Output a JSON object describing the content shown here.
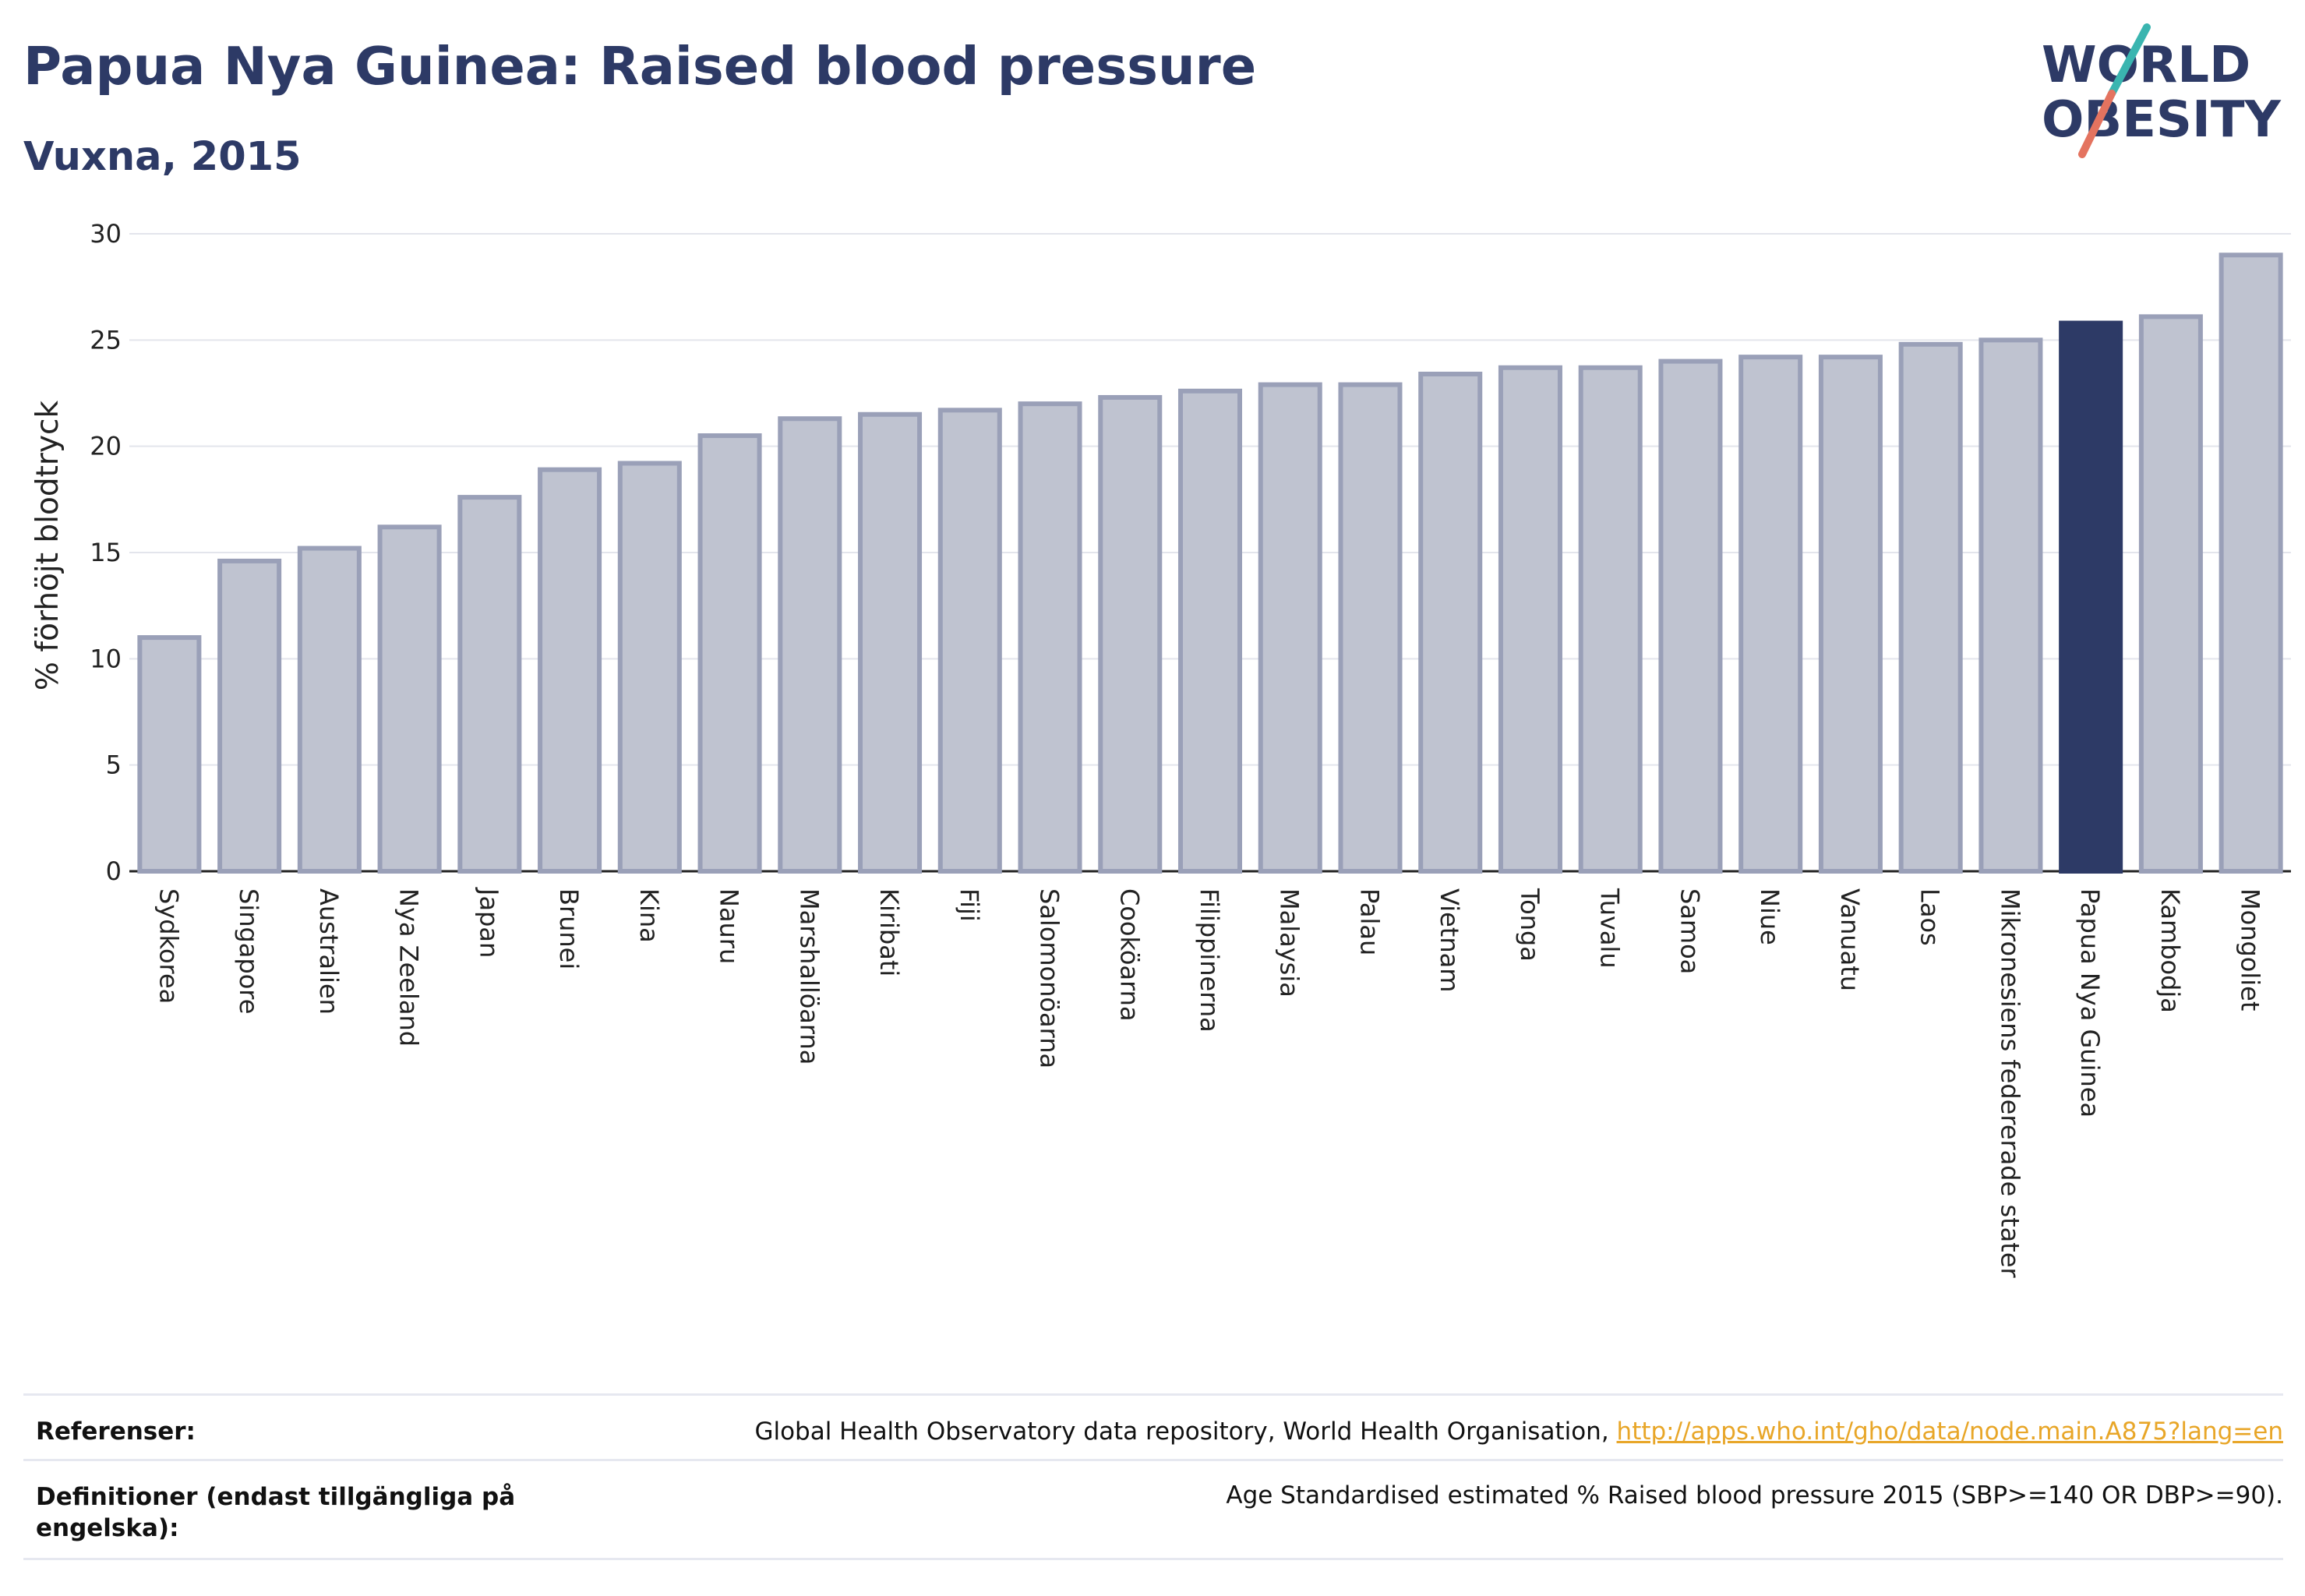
{
  "header": {
    "title": "Papua Nya Guinea: Raised blood pressure",
    "subtitle": "Vuxna, 2015"
  },
  "logo": {
    "line1": "WORLD",
    "line2": "OBESITY",
    "slash_colors": [
      "#3ab5b0",
      "#e4735f"
    ],
    "text_color": "#2d3a66"
  },
  "chart_data": {
    "type": "bar",
    "title": "Papua Nya Guinea: Raised blood pressure",
    "subtitle": "Vuxna, 2015",
    "xlabel": "",
    "ylabel": "% förhöjt blodtryck",
    "ylim": [
      0,
      30
    ],
    "yticks": [
      0,
      5,
      10,
      15,
      20,
      25,
      30
    ],
    "grid": true,
    "highlight": "Papua Nya Guinea",
    "colors": {
      "bar": "#bfc3d0",
      "bar_edge": "#9aa0b8",
      "highlight": "#2d3a66"
    },
    "categories": [
      "Sydkorea",
      "Singapore",
      "Australien",
      "Nya Zeeland",
      "Japan",
      "Brunei",
      "Kina",
      "Nauru",
      "Marshallöarna",
      "Kiribati",
      "Fiji",
      "Salomonöarna",
      "Cooköarna",
      "Filippinerna",
      "Malaysia",
      "Palau",
      "Vietnam",
      "Tonga",
      "Tuvalu",
      "Samoa",
      "Niue",
      "Vanuatu",
      "Laos",
      "Mikronesiens federerade stater",
      "Papua Nya Guinea",
      "Kambodja",
      "Mongoliet"
    ],
    "values": [
      11.0,
      14.6,
      15.2,
      16.2,
      17.6,
      18.9,
      19.2,
      20.5,
      21.3,
      21.5,
      21.7,
      22.0,
      22.3,
      22.6,
      22.9,
      22.9,
      23.4,
      23.7,
      23.7,
      24.0,
      24.2,
      24.2,
      24.8,
      25.0,
      25.8,
      26.1,
      29.0
    ]
  },
  "footer": {
    "references_label": "Referenser:",
    "references_text": "Global Health Observatory data repository, World Health Organisation, ",
    "references_link": "http://apps.who.int/gho/data/node.main.A875?lang=en",
    "definitions_label": "Definitioner (endast tillgängliga på engelska):",
    "definitions_text": "Age Standardised estimated % Raised blood pressure 2015 (SBP>=140 OR DBP>=90)."
  }
}
